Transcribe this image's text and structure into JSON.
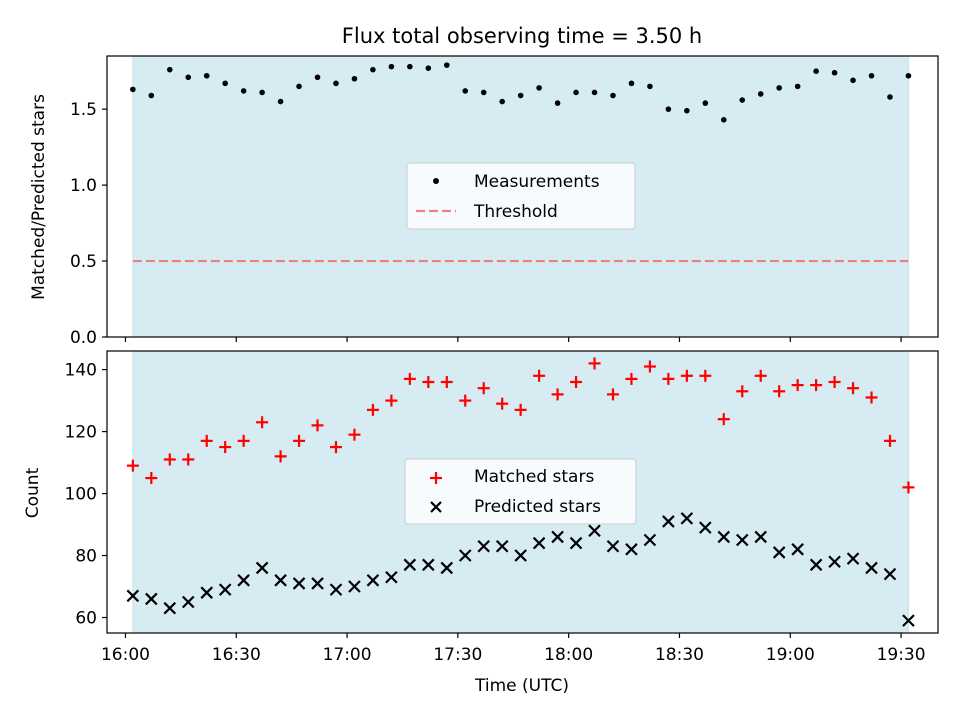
{
  "title": "Flux total observing time = 3.50 h",
  "chart_data": [
    {
      "type": "scatter",
      "panel": "top",
      "ylabel": "Matched/Predicted stars",
      "ylim": [
        0,
        1.85
      ],
      "yticks": [
        0.0,
        0.5,
        1.0,
        1.5
      ],
      "ytick_labels": [
        "0.0",
        "0.5",
        "1.0",
        "1.5"
      ],
      "legend_position": "center",
      "series": [
        {
          "name": "Measurements",
          "marker": "dot",
          "color": "#000000",
          "x": [
            "16:02",
            "16:07",
            "16:12",
            "16:17",
            "16:22",
            "16:27",
            "16:32",
            "16:37",
            "16:42",
            "16:47",
            "16:52",
            "16:57",
            "17:02",
            "17:07",
            "17:12",
            "17:17",
            "17:22",
            "17:27",
            "17:32",
            "17:37",
            "17:42",
            "17:47",
            "17:52",
            "17:57",
            "18:02",
            "18:07",
            "18:12",
            "18:17",
            "18:22",
            "18:27",
            "18:32",
            "18:37",
            "18:42",
            "18:47",
            "18:52",
            "18:57",
            "19:02",
            "19:07",
            "19:12",
            "19:17",
            "19:22",
            "19:27",
            "19:32"
          ],
          "values": [
            1.63,
            1.59,
            1.76,
            1.71,
            1.72,
            1.67,
            1.62,
            1.61,
            1.55,
            1.65,
            1.71,
            1.67,
            1.7,
            1.76,
            1.78,
            1.78,
            1.77,
            1.79,
            1.62,
            1.61,
            1.55,
            1.59,
            1.64,
            1.54,
            1.61,
            1.61,
            1.59,
            1.67,
            1.65,
            1.5,
            1.49,
            1.54,
            1.43,
            1.56,
            1.6,
            1.64,
            1.65,
            1.75,
            1.74,
            1.69,
            1.72,
            1.58,
            1.72
          ]
        },
        {
          "name": "Threshold",
          "style": "dashed",
          "color": "#f08080",
          "value": 0.5
        }
      ]
    },
    {
      "type": "scatter",
      "panel": "bottom",
      "ylabel": "Count",
      "xlabel": "Time (UTC)",
      "ylim": [
        55,
        146
      ],
      "yticks": [
        60,
        80,
        100,
        120,
        140
      ],
      "ytick_labels": [
        "60",
        "80",
        "100",
        "120",
        "140"
      ],
      "xlim": [
        "15:55",
        "19:40"
      ],
      "xticks": [
        "16:00",
        "16:30",
        "17:00",
        "17:30",
        "18:00",
        "18:30",
        "19:00",
        "19:30"
      ],
      "legend_position": "center",
      "series": [
        {
          "name": "Matched stars",
          "marker": "plus",
          "color": "#ff0000",
          "x": [
            "16:02",
            "16:07",
            "16:12",
            "16:17",
            "16:22",
            "16:27",
            "16:32",
            "16:37",
            "16:42",
            "16:47",
            "16:52",
            "16:57",
            "17:02",
            "17:07",
            "17:12",
            "17:17",
            "17:22",
            "17:27",
            "17:32",
            "17:37",
            "17:42",
            "17:47",
            "17:52",
            "17:57",
            "18:02",
            "18:07",
            "18:12",
            "18:17",
            "18:22",
            "18:27",
            "18:32",
            "18:37",
            "18:42",
            "18:47",
            "18:52",
            "18:57",
            "19:02",
            "19:07",
            "19:12",
            "19:17",
            "19:22",
            "19:27",
            "19:32"
          ],
          "values": [
            109,
            105,
            111,
            111,
            117,
            115,
            117,
            123,
            112,
            117,
            122,
            115,
            119,
            127,
            130,
            137,
            136,
            136,
            130,
            134,
            129,
            127,
            138,
            132,
            136,
            142,
            132,
            137,
            141,
            137,
            138,
            138,
            124,
            133,
            138,
            133,
            135,
            135,
            136,
            134,
            131,
            117,
            102
          ]
        },
        {
          "name": "Predicted stars",
          "marker": "x",
          "color": "#000000",
          "x": [
            "16:02",
            "16:07",
            "16:12",
            "16:17",
            "16:22",
            "16:27",
            "16:32",
            "16:37",
            "16:42",
            "16:47",
            "16:52",
            "16:57",
            "17:02",
            "17:07",
            "17:12",
            "17:17",
            "17:22",
            "17:27",
            "17:32",
            "17:37",
            "17:42",
            "17:47",
            "17:52",
            "17:57",
            "18:02",
            "18:07",
            "18:12",
            "18:17",
            "18:22",
            "18:27",
            "18:32",
            "18:37",
            "18:42",
            "18:47",
            "18:52",
            "18:57",
            "19:02",
            "19:07",
            "19:12",
            "19:17",
            "19:22",
            "19:27",
            "19:32"
          ],
          "values": [
            67,
            66,
            63,
            65,
            68,
            69,
            72,
            76,
            72,
            71,
            71,
            69,
            70,
            72,
            73,
            77,
            77,
            76,
            80,
            83,
            83,
            80,
            84,
            86,
            84,
            88,
            83,
            82,
            85,
            91,
            92,
            89,
            86,
            85,
            86,
            81,
            82,
            77,
            78,
            79,
            76,
            74,
            59
          ]
        }
      ]
    }
  ],
  "observing_window": {
    "start": "16:02",
    "end": "19:32",
    "color": "#add8e6"
  }
}
